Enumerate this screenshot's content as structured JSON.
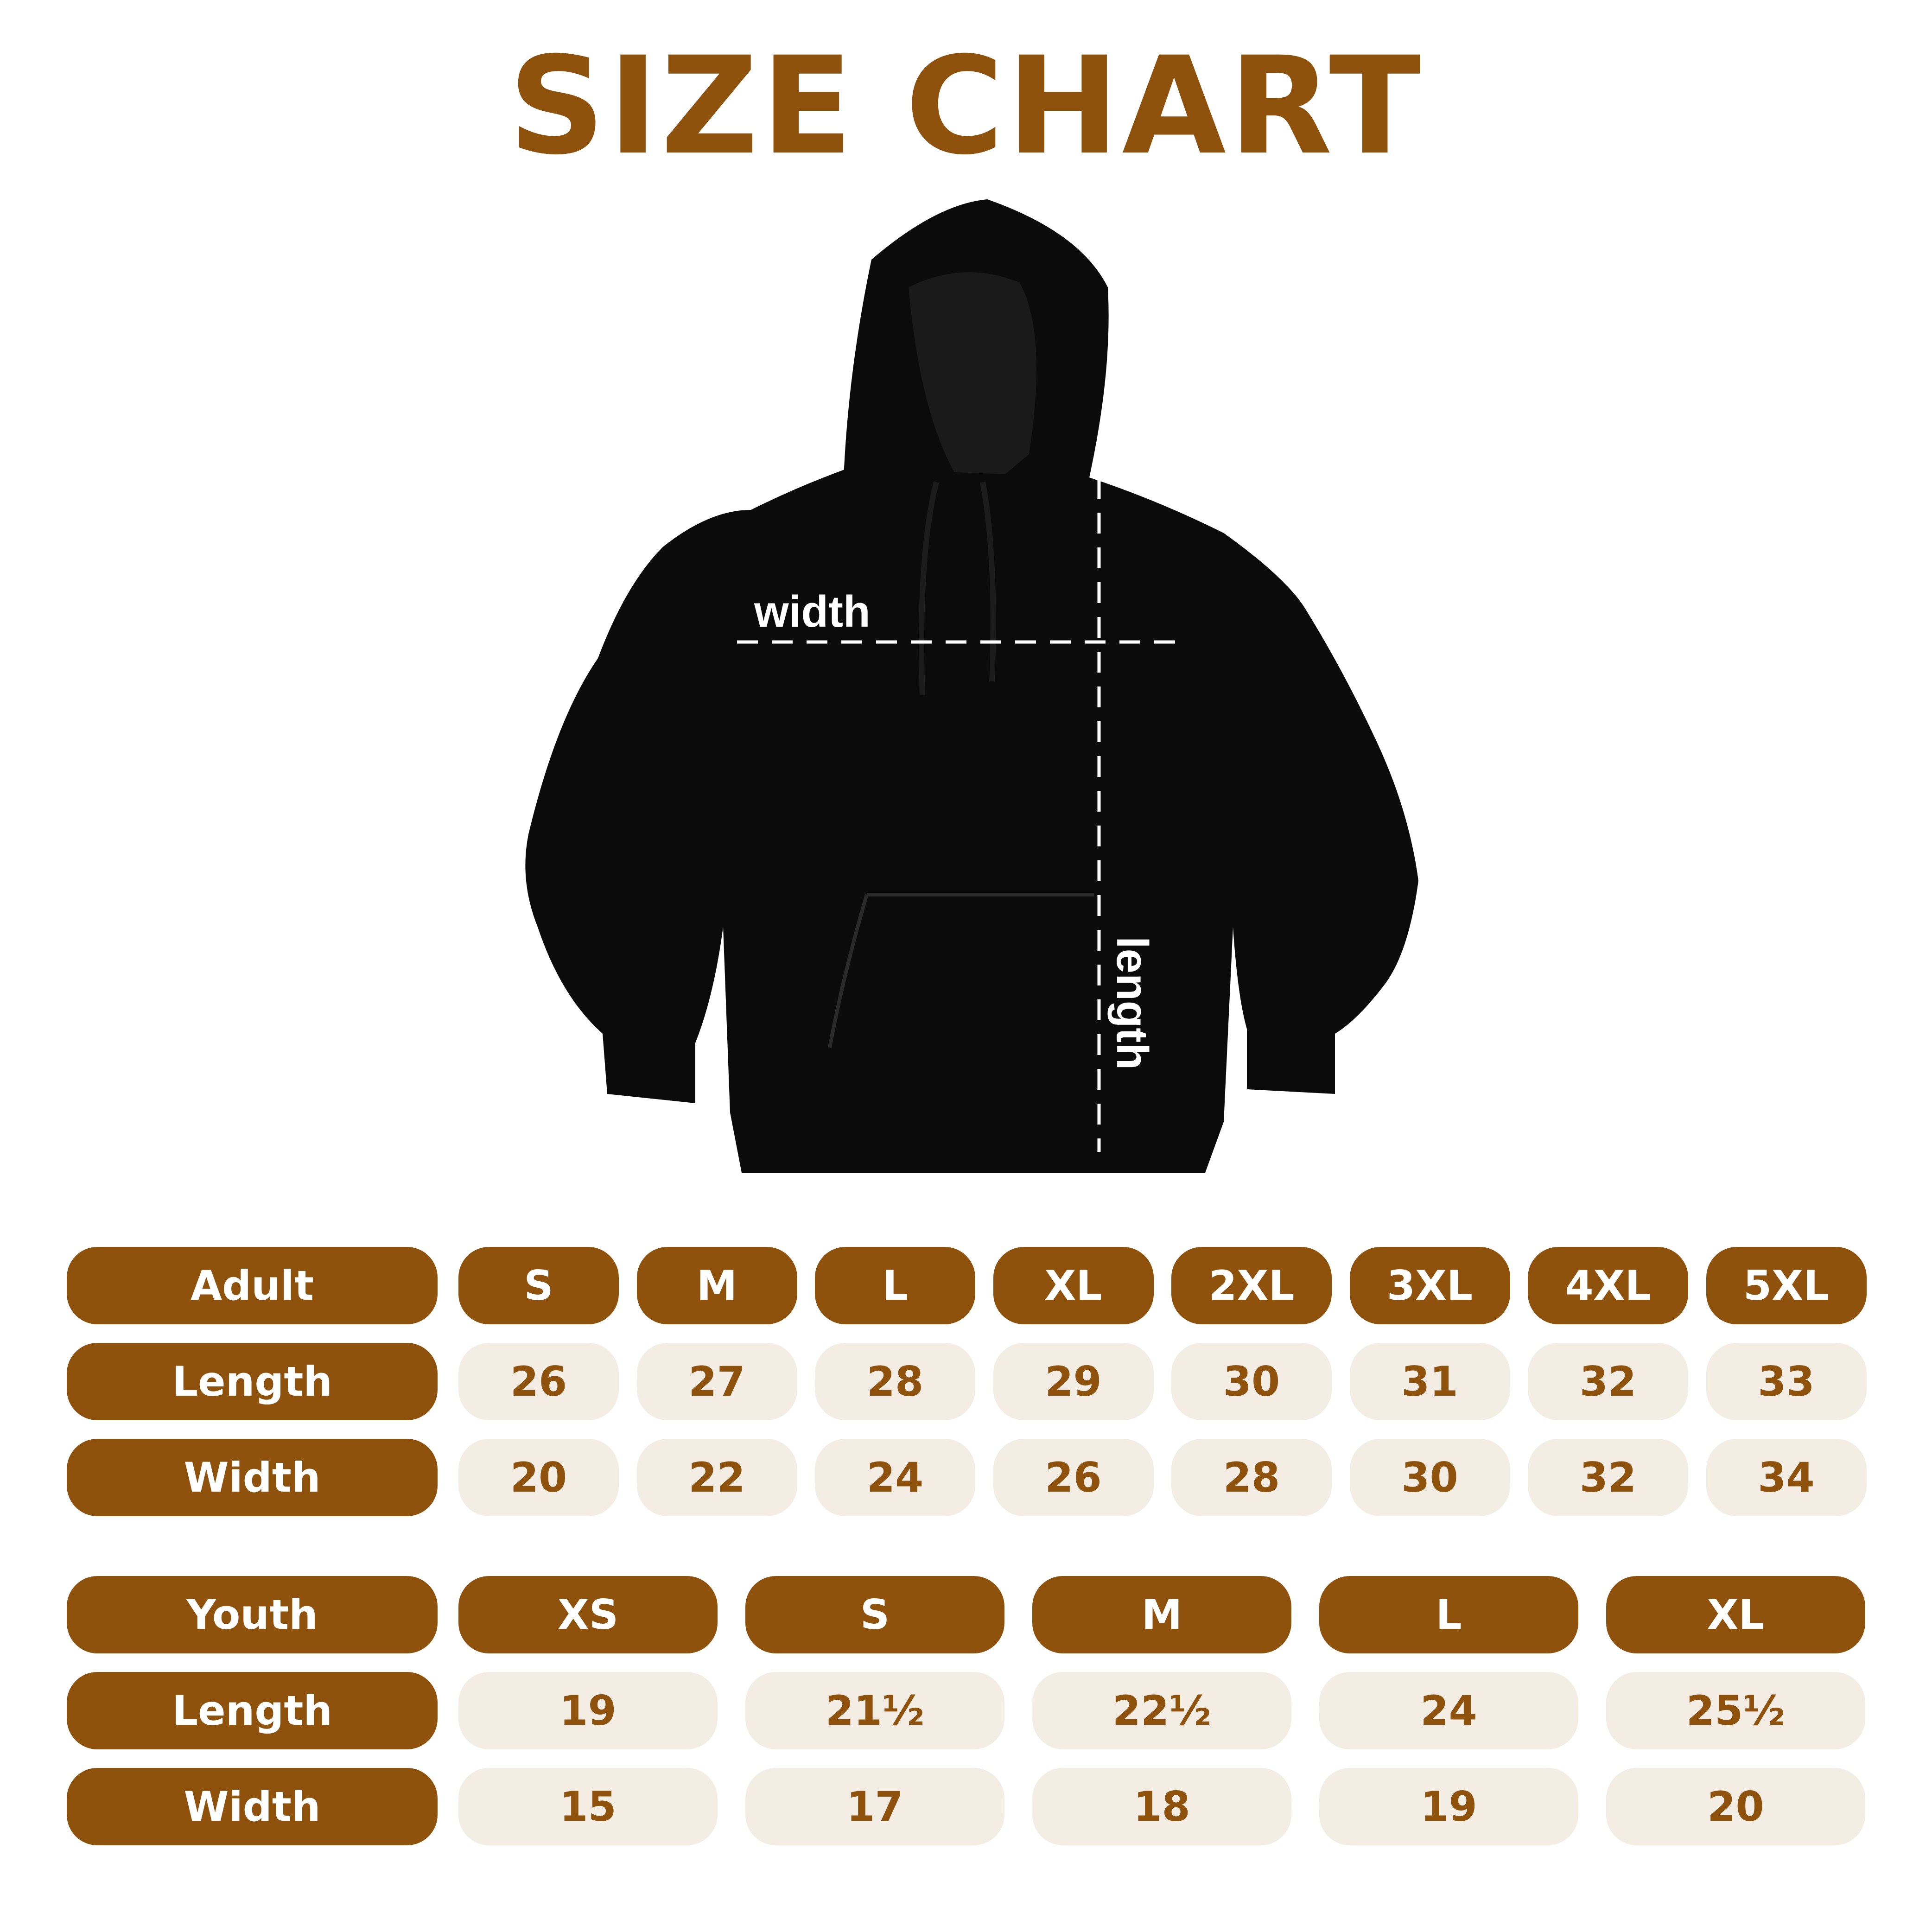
{
  "title": "SIZE CHART",
  "diagram": {
    "width_label": "width",
    "length_label": "length"
  },
  "colors": {
    "brand": "#8f520d",
    "cell_bg": "#f4ede4",
    "garment": "#0b0b0b"
  },
  "adult": {
    "header": "Adult",
    "sizes": [
      "S",
      "M",
      "L",
      "XL",
      "2XL",
      "3XL",
      "4XL",
      "5XL"
    ],
    "rows": [
      {
        "label": "Length",
        "values": [
          "26",
          "27",
          "28",
          "29",
          "30",
          "31",
          "32",
          "33"
        ]
      },
      {
        "label": "Width",
        "values": [
          "20",
          "22",
          "24",
          "26",
          "28",
          "30",
          "32",
          "34"
        ]
      }
    ]
  },
  "youth": {
    "header": "Youth",
    "sizes": [
      "XS",
      "S",
      "M",
      "L",
      "XL"
    ],
    "rows": [
      {
        "label": "Length",
        "values": [
          "19",
          "21½",
          "22½",
          "24",
          "25½"
        ]
      },
      {
        "label": "Width",
        "values": [
          "15",
          "17",
          "18",
          "19",
          "20"
        ]
      }
    ]
  }
}
